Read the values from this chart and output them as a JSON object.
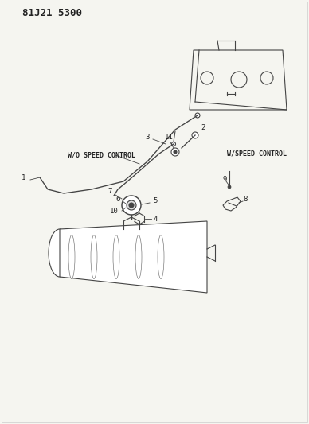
{
  "title": "81J21 5300",
  "bg_color": "#f5f5f0",
  "line_color": "#444444",
  "text_color": "#222222",
  "labels": {
    "wo_speed": "W/O SPEED CONTROL",
    "w_speed": "W/SPEED CONTROL",
    "part_numbers": [
      "1",
      "2",
      "3",
      "4",
      "5",
      "6",
      "7",
      "8",
      "9",
      "10",
      "11"
    ]
  }
}
